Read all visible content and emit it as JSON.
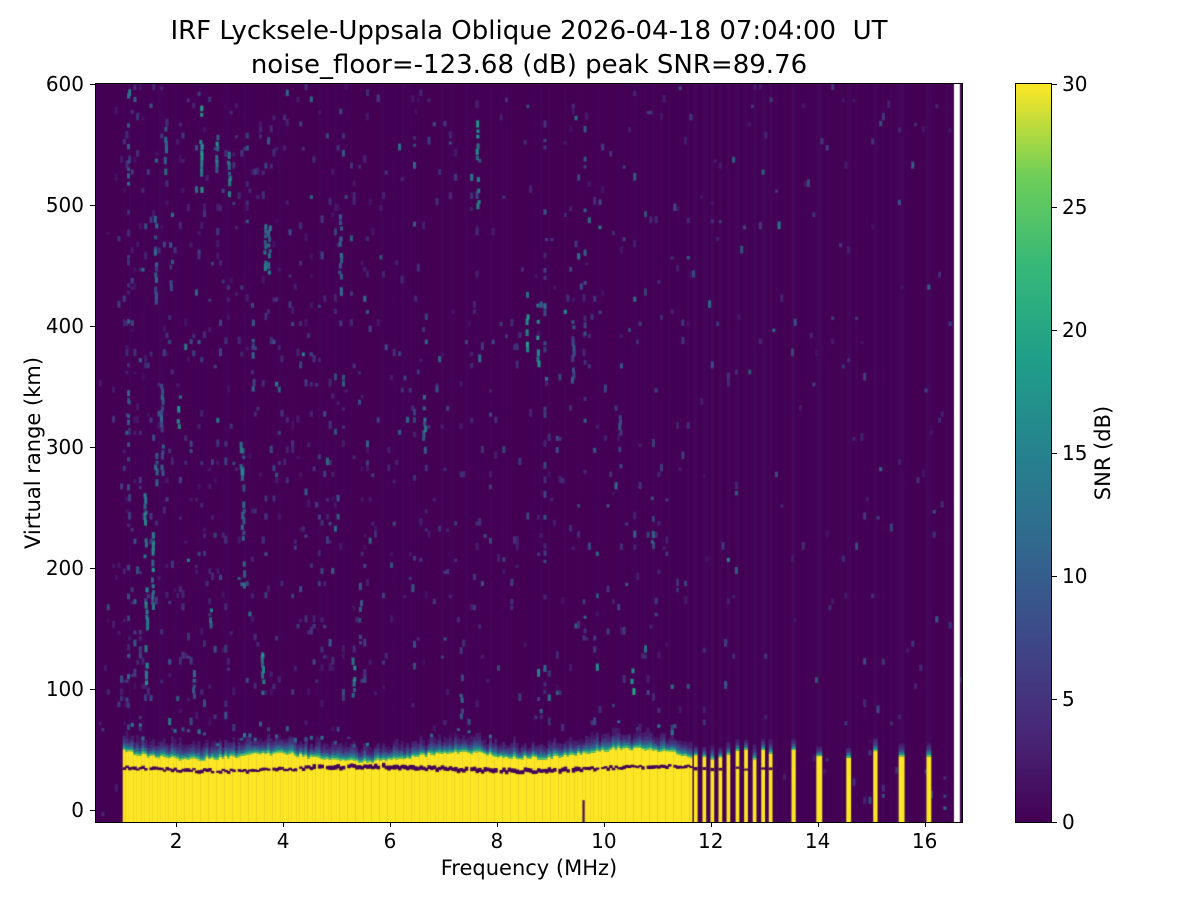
{
  "chart_data": {
    "type": "heatmap",
    "title": "IRF Lycksele-Uppsala Oblique 2026-04-18 07:04:00  UT",
    "subtitle": "noise_floor=-123.68 (dB) peak SNR=89.76",
    "station": "IRF Lycksele-Uppsala Oblique",
    "timestamp_ut": "2026-04-18 07:04:00 UT",
    "noise_floor_db": -123.68,
    "peak_snr_db": 89.76,
    "xlabel": "Frequency (MHz)",
    "ylabel": "Virtual range (km)",
    "colorbar_label": "SNR (dB)",
    "xlim": [
      0.5,
      16.7
    ],
    "ylim": [
      -10,
      600
    ],
    "clim": [
      0,
      30
    ],
    "x_ticks": [
      2,
      4,
      6,
      8,
      10,
      12,
      14,
      16
    ],
    "y_ticks": [
      0,
      100,
      200,
      300,
      400,
      500,
      600
    ],
    "colorbar_ticks": [
      0,
      5,
      10,
      15,
      20,
      25,
      30
    ],
    "colormap": "viridis",
    "colormap_stops": [
      "#440154",
      "#482878",
      "#3e4989",
      "#31688e",
      "#26828e",
      "#1f9e89",
      "#35b779",
      "#6ece58",
      "#fde725"
    ],
    "features": {
      "saturated_ground_band": {
        "f_start_mhz": 1.0,
        "f_end_mhz": 11.63,
        "top_km_mean": 45,
        "value_db": 30
      },
      "dark_echo_line_km": 34,
      "transmission_stripes": [
        {
          "f": 11.72,
          "w": 0.07
        },
        {
          "f": 11.88,
          "w": 0.07
        },
        {
          "f": 12.03,
          "w": 0.07
        },
        {
          "f": 12.18,
          "w": 0.07
        },
        {
          "f": 12.33,
          "w": 0.07
        },
        {
          "f": 12.5,
          "w": 0.07
        },
        {
          "f": 12.66,
          "w": 0.07
        },
        {
          "f": 12.82,
          "w": 0.07
        },
        {
          "f": 12.98,
          "w": 0.07
        },
        {
          "f": 13.12,
          "w": 0.07
        },
        {
          "f": 13.55,
          "w": 0.08
        },
        {
          "f": 14.03,
          "w": 0.11
        },
        {
          "f": 14.58,
          "w": 0.09
        },
        {
          "f": 15.08,
          "w": 0.08
        },
        {
          "f": 15.57,
          "w": 0.11
        },
        {
          "f": 16.08,
          "w": 0.09
        }
      ],
      "missing_data_column_mhz": [
        16.55,
        16.66
      ],
      "noise_speckles": "sparse teal/blue speckles 2-17 dB over purple background; denser with vertical dashed streaks below ~5.5 MHz"
    }
  }
}
